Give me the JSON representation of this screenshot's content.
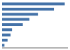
{
  "chart_data": {
    "type": "bar",
    "orientation": "horizontal",
    "categories": [
      null,
      null,
      null,
      null,
      null,
      null,
      null,
      null,
      null
    ],
    "values": [
      6650,
      5500,
      3800,
      2900,
      2200,
      1050,
      900,
      580,
      250
    ],
    "color": "#4472a8",
    "xlim": [
      0,
      6982.5
    ],
    "grid": false,
    "tick_labels": false
  }
}
